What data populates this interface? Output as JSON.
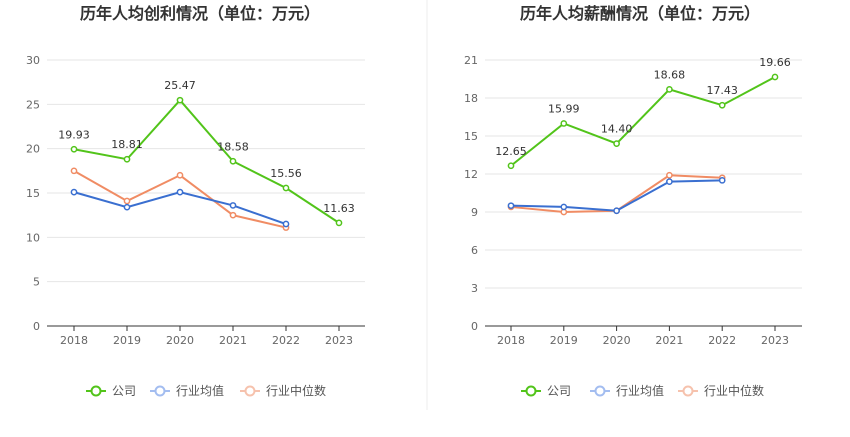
{
  "chart_data": [
    {
      "type": "line",
      "title": "历年人均创利情况（单位：万元）",
      "categories": [
        "2018",
        "2019",
        "2020",
        "2021",
        "2022",
        "2023"
      ],
      "ylim": [
        0,
        30
      ],
      "yticks": [
        0,
        5,
        10,
        15,
        20,
        25,
        30
      ],
      "grid": true,
      "legend_position": "bottom",
      "series": [
        {
          "name": "公司",
          "color": "#52c41a",
          "values": [
            19.93,
            18.81,
            25.47,
            18.58,
            15.56,
            11.63
          ],
          "labels": [
            "19.93",
            "18.81",
            "25.47",
            "18.58",
            "15.56",
            "11.63"
          ]
        },
        {
          "name": "行业均值",
          "color": "#3a6fd0",
          "values": [
            15.1,
            13.4,
            15.1,
            13.6,
            11.5,
            null
          ]
        },
        {
          "name": "行业中位数",
          "color": "#f08c64",
          "values": [
            17.5,
            14.1,
            17.0,
            12.5,
            11.1,
            null
          ]
        }
      ]
    },
    {
      "type": "line",
      "title": "历年人均薪酬情况（单位：万元）",
      "categories": [
        "2018",
        "2019",
        "2020",
        "2021",
        "2022",
        "2023"
      ],
      "ylim": [
        0,
        21
      ],
      "yticks": [
        0,
        3,
        6,
        9,
        12,
        15,
        18,
        21
      ],
      "grid": true,
      "legend_position": "bottom",
      "series": [
        {
          "name": "公司",
          "color": "#52c41a",
          "values": [
            12.65,
            15.99,
            14.4,
            18.68,
            17.43,
            19.66
          ],
          "labels": [
            "12.65",
            "15.99",
            "14.40",
            "18.68",
            "17.43",
            "19.66"
          ]
        },
        {
          "name": "行业均值",
          "color": "#3a6fd0",
          "values": [
            9.5,
            9.4,
            9.1,
            11.4,
            11.5,
            null
          ]
        },
        {
          "name": "行业中位数",
          "color": "#f08c64",
          "values": [
            9.4,
            9.0,
            9.1,
            11.9,
            11.7,
            null
          ]
        }
      ]
    }
  ]
}
